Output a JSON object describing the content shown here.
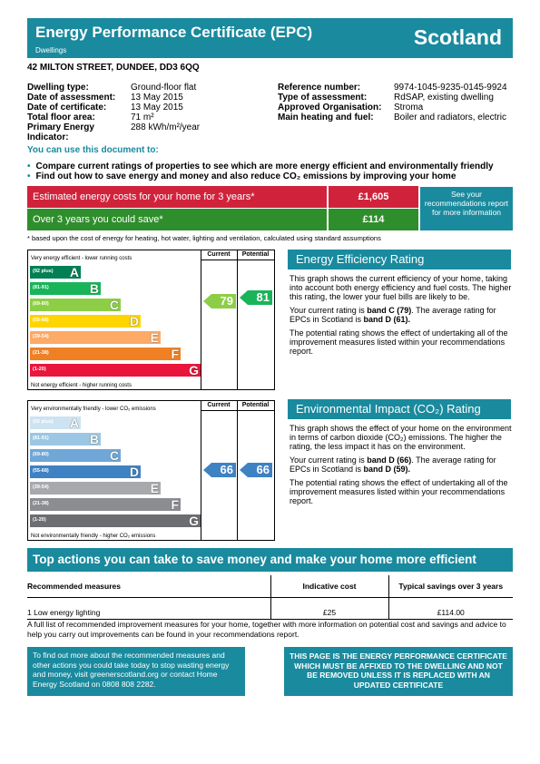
{
  "header": {
    "title": "Energy Performance Certificate (EPC)",
    "subtitle": "Dwellings",
    "country": "Scotland"
  },
  "address": "42 MILTON STREET, DUNDEE, DD3 6QQ",
  "left_info": [
    [
      "Dwelling type:",
      "Ground-floor flat"
    ],
    [
      "Date of assessment:",
      "13 May 2015"
    ],
    [
      "Date of certificate:",
      "13 May 2015"
    ],
    [
      "Total floor area:",
      "71 m²"
    ],
    [
      "Primary Energy Indicator:",
      "288 kWh/m²/year"
    ]
  ],
  "right_info": [
    [
      "Reference number:",
      "9974-1045-9235-0145-9924"
    ],
    [
      "Type of assessment:",
      "RdSAP, existing dwelling"
    ],
    [
      "Approved Organisation:",
      "Stroma"
    ],
    [
      "Main heating and fuel:",
      "Boiler and radiators, electric"
    ]
  ],
  "lead": "You can use this document to:",
  "bullets": [
    "Compare current ratings of properties to see which are more energy efficient and environmentally friendly",
    "Find out how to save energy and money and also reduce CO₂ emissions by improving your home"
  ],
  "costs": {
    "row1_label": "Estimated energy costs for your home for 3 years*",
    "row1_value": "£1,605",
    "row2_label": "Over 3 years you could save*",
    "row2_value": "£114",
    "see": "See your recommendations report for more information",
    "footnote": "* based upon the cost of energy for heating, hot water, lighting and ventilation, calculated using standard assumptions"
  },
  "eer": {
    "top": "Very energy efficient - lower running costs",
    "bottom": "Not energy efficient - higher running costs",
    "current_h": "Current",
    "potential_h": "Potential",
    "current": "79",
    "potential": "81",
    "bands": [
      {
        "range": "(92 plus)",
        "letter": "A",
        "color": "#008054"
      },
      {
        "range": "(81-91)",
        "letter": "B",
        "color": "#19b459"
      },
      {
        "range": "(69-80)",
        "letter": "C",
        "color": "#8dce46"
      },
      {
        "range": "(55-68)",
        "letter": "D",
        "color": "#ffd500"
      },
      {
        "range": "(39-54)",
        "letter": "E",
        "color": "#fcaa65"
      },
      {
        "range": "(21-38)",
        "letter": "F",
        "color": "#ef8023"
      },
      {
        "range": "(1-20)",
        "letter": "G",
        "color": "#e9153b"
      }
    ]
  },
  "eir": {
    "top": "Very environmentally friendly - lower CO₂ emissions",
    "bottom": "Not environmentally friendly - higher CO₂ emissions",
    "current_h": "Current",
    "potential_h": "Potential",
    "current": "66",
    "potential": "66",
    "bands": [
      {
        "range": "(92 plus)",
        "letter": "A",
        "color": "#cde3f2"
      },
      {
        "range": "(81-91)",
        "letter": "B",
        "color": "#9bc7e4"
      },
      {
        "range": "(69-80)",
        "letter": "C",
        "color": "#6fa7d7"
      },
      {
        "range": "(55-68)",
        "letter": "D",
        "color": "#3e82c4"
      },
      {
        "range": "(39-54)",
        "letter": "E",
        "color": "#a7a9ac"
      },
      {
        "range": "(21-38)",
        "letter": "F",
        "color": "#8b8d90"
      },
      {
        "range": "(1-20)",
        "letter": "G",
        "color": "#6d6e71"
      }
    ]
  },
  "eer_panel": {
    "title": "Energy Efficiency Rating",
    "p1": "This graph shows the current efficiency of your home, taking into account both energy efficiency and fuel costs. The higher this rating, the lower your fuel bills are likely to be.",
    "p2a": "Your current rating is ",
    "p2b": "band C (79)",
    "p2c": ". The average rating for EPCs in Scotland is ",
    "p2d": "band D (61).",
    "p3": "The potential rating shows the effect of undertaking all of the improvement measures listed within your recommendations report."
  },
  "eir_panel": {
    "title": "Environmental Impact (CO₂) Rating",
    "p1": "This graph shows the effect of your home on the environment in terms of carbon dioxide (CO₂) emissions. The higher the rating, the less impact it has on the environment.",
    "p2a": "Your current rating is ",
    "p2b": "band D (66)",
    "p2c": ". The average rating for EPCs in Scotland is ",
    "p2d": "band D (59).",
    "p3": "The potential rating shows the effect of undertaking all of the improvement measures listed within your recommendations report."
  },
  "actions": {
    "title": "Top actions you can take to save money and make your home more efficient",
    "h1": "Recommended measures",
    "h2": "Indicative cost",
    "h3": "Typical savings over 3 years",
    "r1": "1 Low energy lighting",
    "r2": "£25",
    "r3": "£114.00"
  },
  "full": "A full list of recommended improvement measures for your home, together with more information on potential cost and savings and advice to help you carry out improvements can be found in your recommendations report.",
  "bottom_left": "To find out more about the recommended measures and other actions you could take today to stop wasting energy and money, visit greenerscotland.org or contact Home Energy Scotland on 0808 808 2282.",
  "bottom_right": "THIS PAGE IS THE ENERGY PERFORMANCE CERTIFICATE WHICH MUST BE AFFIXED TO THE DWELLING AND NOT BE REMOVED UNLESS IT IS REPLACED WITH AN UPDATED CERTIFICATE"
}
